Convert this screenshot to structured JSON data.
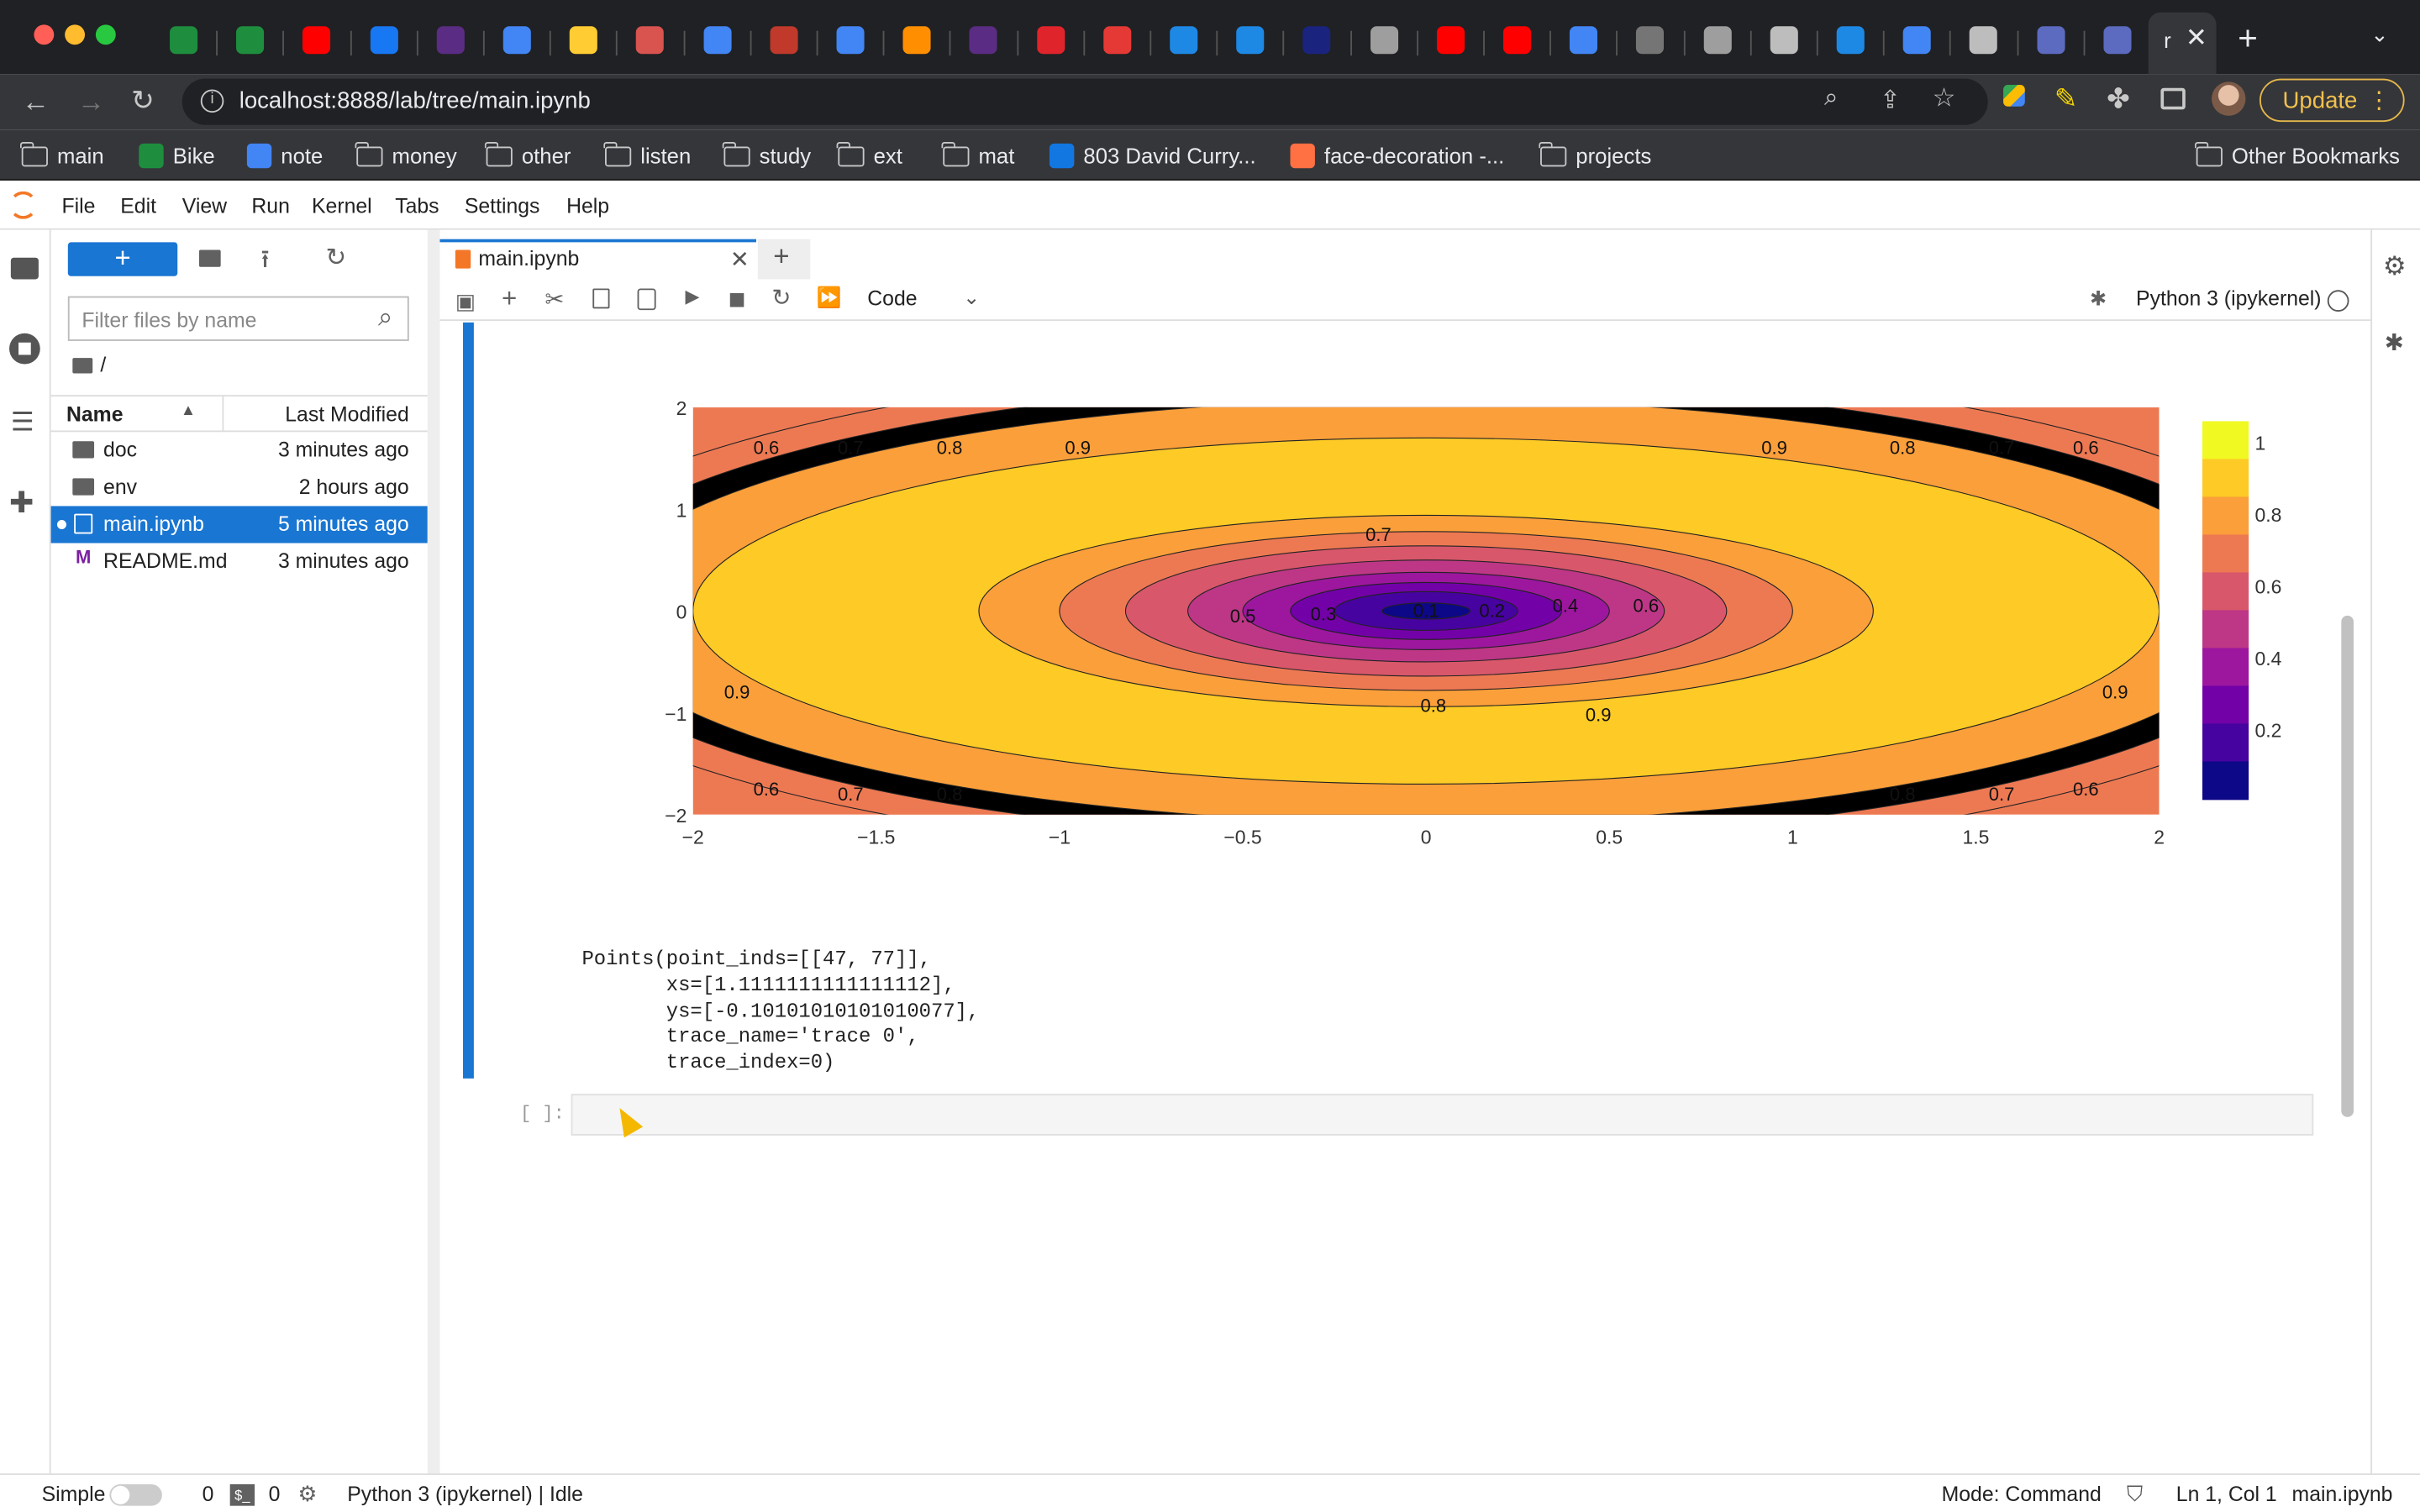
{
  "browser": {
    "url": "localhost:8888/lab/tree/main.ipynb",
    "update_label": "Update",
    "active_tab_label": "r",
    "tab_icons": [
      "green-sheets",
      "green-sheets",
      "youtube",
      "facebook",
      "r-logo",
      "google",
      "huggingface",
      "person",
      "google",
      "stack",
      "google",
      "tensorflow",
      "r-logo",
      "scribd",
      "custom-c",
      "two",
      "fr",
      "x-logo",
      "chrome",
      "youtube",
      "youtube",
      "google",
      "openai",
      "github",
      "globe",
      "chat",
      "google",
      "globe",
      "chart",
      "chart"
    ],
    "bookmarks": [
      {
        "label": "main",
        "icon": "folder-icon"
      },
      {
        "label": "Bike",
        "icon": "plus-sheet-icon"
      },
      {
        "label": "note",
        "icon": "doc-icon"
      },
      {
        "label": "money",
        "icon": "folder-icon"
      },
      {
        "label": "other",
        "icon": "folder-icon"
      },
      {
        "label": "listen",
        "icon": "folder-icon"
      },
      {
        "label": "study",
        "icon": "folder-icon"
      },
      {
        "label": "ext",
        "icon": "folder-icon"
      },
      {
        "label": "mat",
        "icon": "folder-icon"
      },
      {
        "label": "803 David Curry...",
        "icon": "zillow-icon"
      },
      {
        "label": "face-decoration -...",
        "icon": "orange-icon"
      },
      {
        "label": "projects",
        "icon": "folder-icon"
      }
    ],
    "other_bookmarks": "Other Bookmarks"
  },
  "jupyter": {
    "menus": [
      "File",
      "Edit",
      "View",
      "Run",
      "Kernel",
      "Tabs",
      "Settings",
      "Help"
    ],
    "filebrowser": {
      "new_button": "+",
      "filter_placeholder": "Filter files by name",
      "path": "/",
      "col_name": "Name",
      "col_modified": "Last Modified",
      "files": [
        {
          "name": "doc",
          "modified": "3 minutes ago",
          "type": "folder"
        },
        {
          "name": "env",
          "modified": "2 hours ago",
          "type": "folder"
        },
        {
          "name": "main.ipynb",
          "modified": "5 minutes ago",
          "type": "notebook",
          "selected": true
        },
        {
          "name": "README.md",
          "modified": "3 minutes ago",
          "type": "markdown"
        }
      ]
    },
    "notebook": {
      "tab_label": "main.ipynb",
      "cell_type": "Code",
      "kernel": "Python 3 (ipykernel)",
      "output_lines": [
        "Points(point_inds=[[47, 77]],",
        "       xs=[1.1111111111111112],",
        "       ys=[-0.10101010101010077],",
        "       trace_name='trace 0',",
        "       trace_index=0)"
      ],
      "prompt": "[ ]:"
    },
    "status": {
      "mode_label": "Simple",
      "terminals": "0",
      "kernels": "0",
      "kernel_status": "Python 3 (ipykernel) | Idle",
      "mode": "Mode: Command",
      "position": "Ln 1, Col 1",
      "file": "main.ipynb"
    }
  },
  "chart_data": {
    "type": "contour",
    "colorscale": "plasma",
    "x_range": [
      -2,
      2
    ],
    "y_range": [
      -2,
      2
    ],
    "x_ticks": [
      "−2",
      "−1.5",
      "−1",
      "−0.5",
      "0",
      "0.5",
      "1",
      "1.5",
      "2"
    ],
    "y_ticks": [
      "2",
      "1",
      "0",
      "−1",
      "−2"
    ],
    "levels": [
      0.1,
      0.2,
      0.3,
      0.4,
      0.5,
      0.6,
      0.7,
      0.8,
      0.9
    ],
    "level_labels": [
      "0.1",
      "0.2",
      "0.3",
      "0.4",
      "0.5",
      "0.6",
      "0.7",
      "0.8",
      "0.9"
    ],
    "colorbar_ticks": [
      "1",
      "0.8",
      "0.6",
      "0.4",
      "0.2"
    ],
    "colors": [
      "#0d0887",
      "#46039f",
      "#7201a8",
      "#9c179e",
      "#bd3786",
      "#d8576b",
      "#ed7953",
      "#fb9f3a",
      "#fdca26",
      "#f0f921"
    ]
  }
}
